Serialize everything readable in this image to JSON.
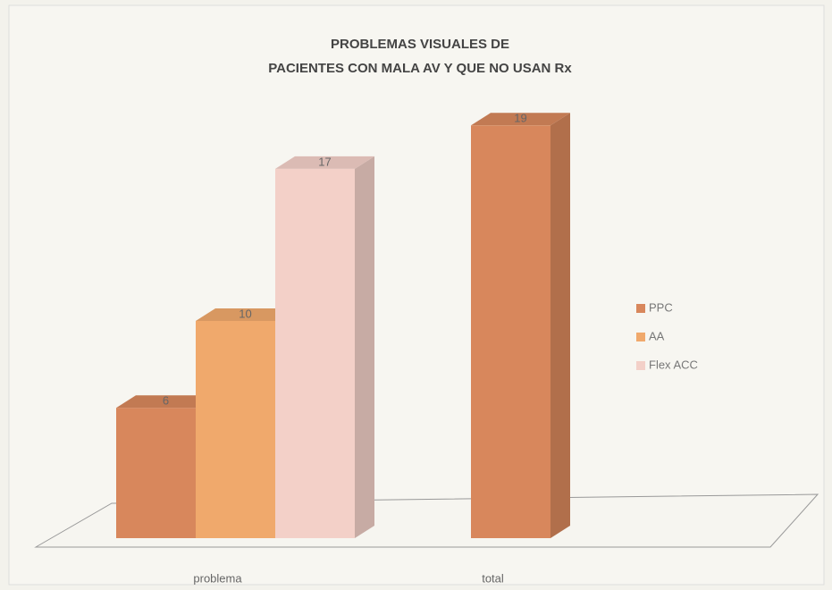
{
  "chart_data": {
    "type": "bar3d",
    "title": [
      "PROBLEMAS VISUALES DE",
      "PACIENTES CON MALA AV Y  QUE NO USAN Rx"
    ],
    "categories": [
      "problema",
      "total"
    ],
    "series": [
      {
        "name": "PPC",
        "color": "#d8875c",
        "values": [
          6,
          19
        ]
      },
      {
        "name": "AA",
        "color": "#f0a96c",
        "values": [
          10,
          null
        ]
      },
      {
        "name": "Flex ACC",
        "color": "#f3d0c8",
        "values": [
          17,
          null
        ]
      }
    ],
    "legend": "right"
  }
}
